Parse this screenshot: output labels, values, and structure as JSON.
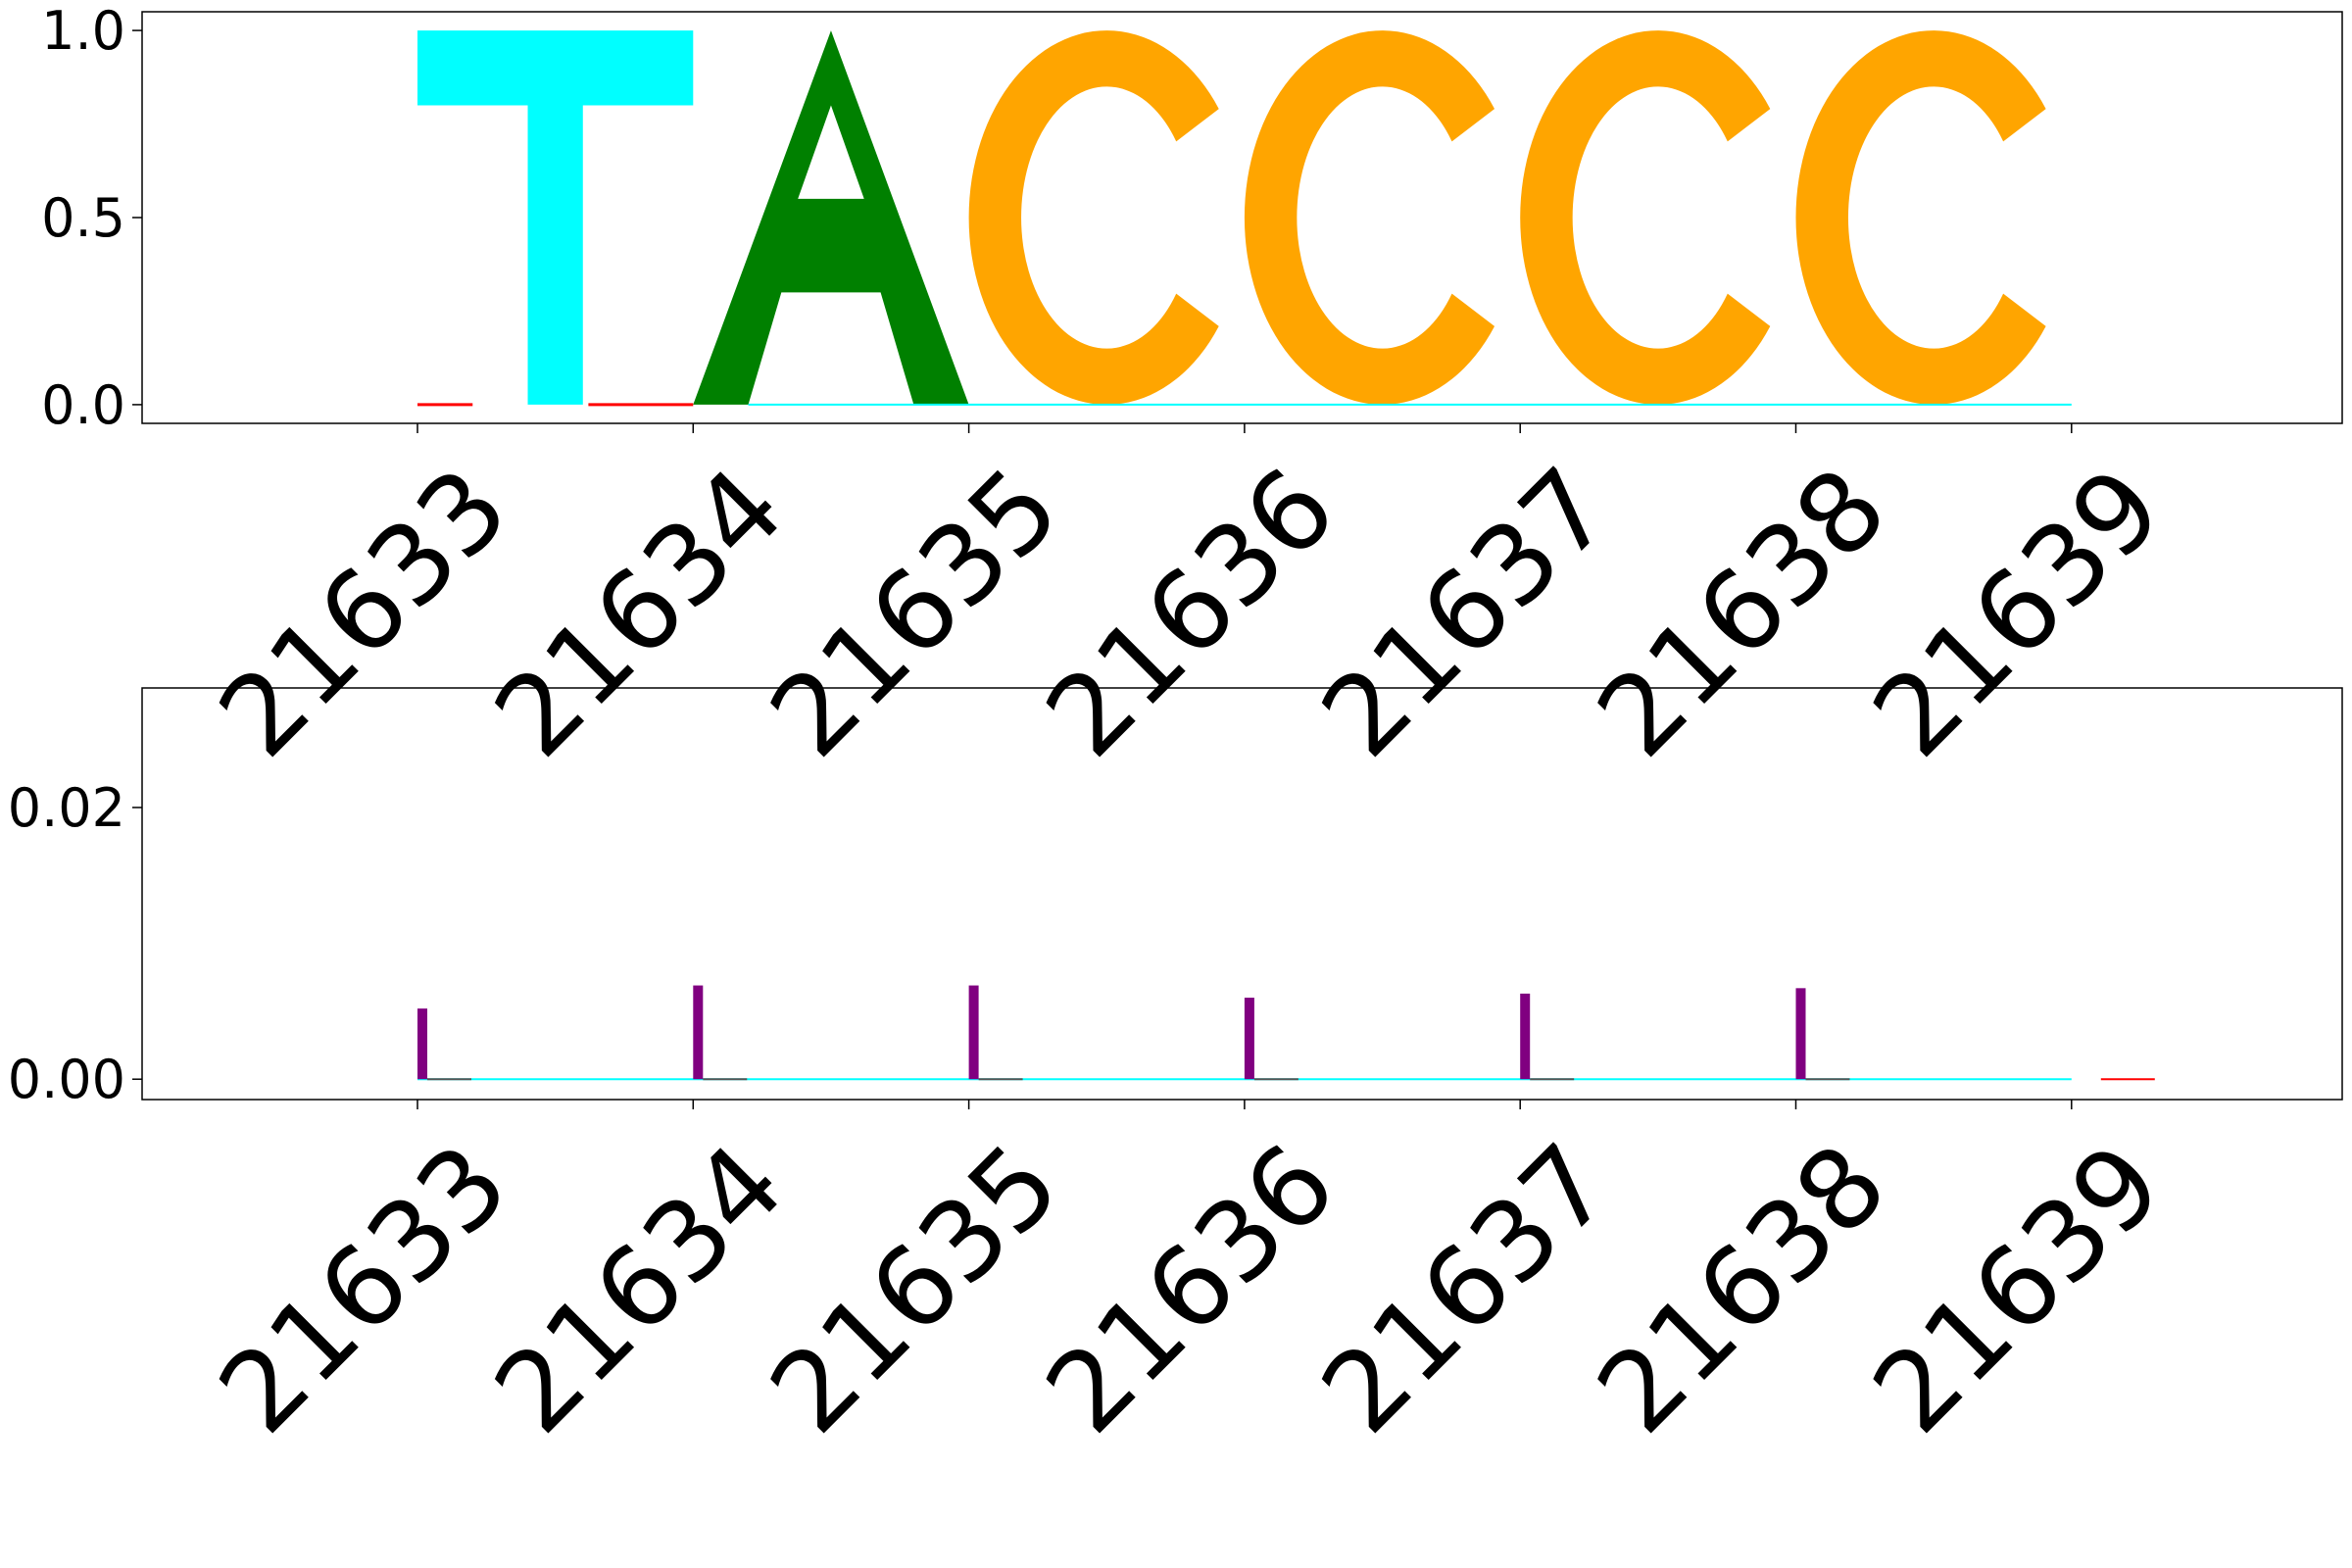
{
  "chart_data": [
    {
      "type": "logo",
      "positions": [
        "21633",
        "21634",
        "21635",
        "21636",
        "21637",
        "21638",
        "21639"
      ],
      "xticks": [
        "21633",
        "21634",
        "21635",
        "21636",
        "21637",
        "21638",
        "21639"
      ],
      "ylim": [
        -0.05,
        1.05
      ],
      "yticks": [
        "0.0",
        "0.5",
        "1.0"
      ],
      "ytick_values": [
        0.0,
        0.5,
        1.0
      ],
      "letters": [
        {
          "position": 0,
          "letter": "T",
          "height": 1.0,
          "color": "#00ffff"
        },
        {
          "position": 1,
          "letter": "A",
          "height": 1.0,
          "color": "#008000"
        },
        {
          "position": 2,
          "letter": "C",
          "height": 1.0,
          "color": "#ffa500"
        },
        {
          "position": 3,
          "letter": "C",
          "height": 1.0,
          "color": "#ffa500"
        },
        {
          "position": 4,
          "letter": "C",
          "height": 1.0,
          "color": "#ffa500"
        },
        {
          "position": 5,
          "letter": "C",
          "height": 1.0,
          "color": "#ffa500"
        }
      ],
      "baseline_colors": [
        "#ff0000",
        "#00ffff"
      ],
      "grid": false
    },
    {
      "type": "bar",
      "categories": [
        "21633",
        "21634",
        "21635",
        "21636",
        "21637",
        "21638",
        "21639"
      ],
      "xticks": [
        "21633",
        "21634",
        "21635",
        "21636",
        "21637",
        "21638",
        "21639"
      ],
      "series": [
        {
          "values": [
            0.0052,
            0.0069,
            0.0069,
            0.006,
            0.0063,
            0.0067,
            0.0001
          ],
          "colors": [
            "#800080",
            "#800080",
            "#800080",
            "#800080",
            "#800080",
            "#800080",
            "#ff0000"
          ]
        }
      ],
      "ylim": [
        -0.0015,
        0.0288
      ],
      "yticks": [
        "0.00",
        "0.02"
      ],
      "ytick_values": [
        0.0,
        0.02
      ],
      "baseline_color": "#00ffff",
      "grid": false
    }
  ]
}
